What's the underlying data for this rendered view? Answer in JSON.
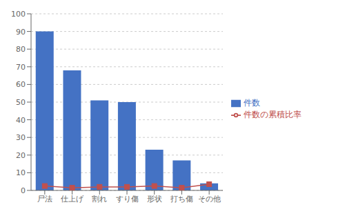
{
  "chart_data": {
    "type": "bar",
    "categories": [
      "尸法",
      "仕上げ",
      "割れ",
      "すり傷",
      "形状",
      "打ち傷",
      "その他"
    ],
    "series": [
      {
        "name": "件数",
        "type": "bar",
        "color": "#4472C4",
        "values": [
          90,
          68,
          51,
          50,
          23,
          17,
          4
        ]
      },
      {
        "name": "件数の累積比率",
        "type": "line",
        "color": "#C0504D",
        "marker": "square",
        "values": [
          2.5,
          1.5,
          2.0,
          2.0,
          2.5,
          1.5,
          3.5
        ]
      }
    ],
    "ylim": [
      0,
      100
    ],
    "yticks": [
      0,
      10,
      20,
      30,
      40,
      50,
      60,
      70,
      80,
      90,
      100
    ],
    "grid": true,
    "legend": "right"
  }
}
